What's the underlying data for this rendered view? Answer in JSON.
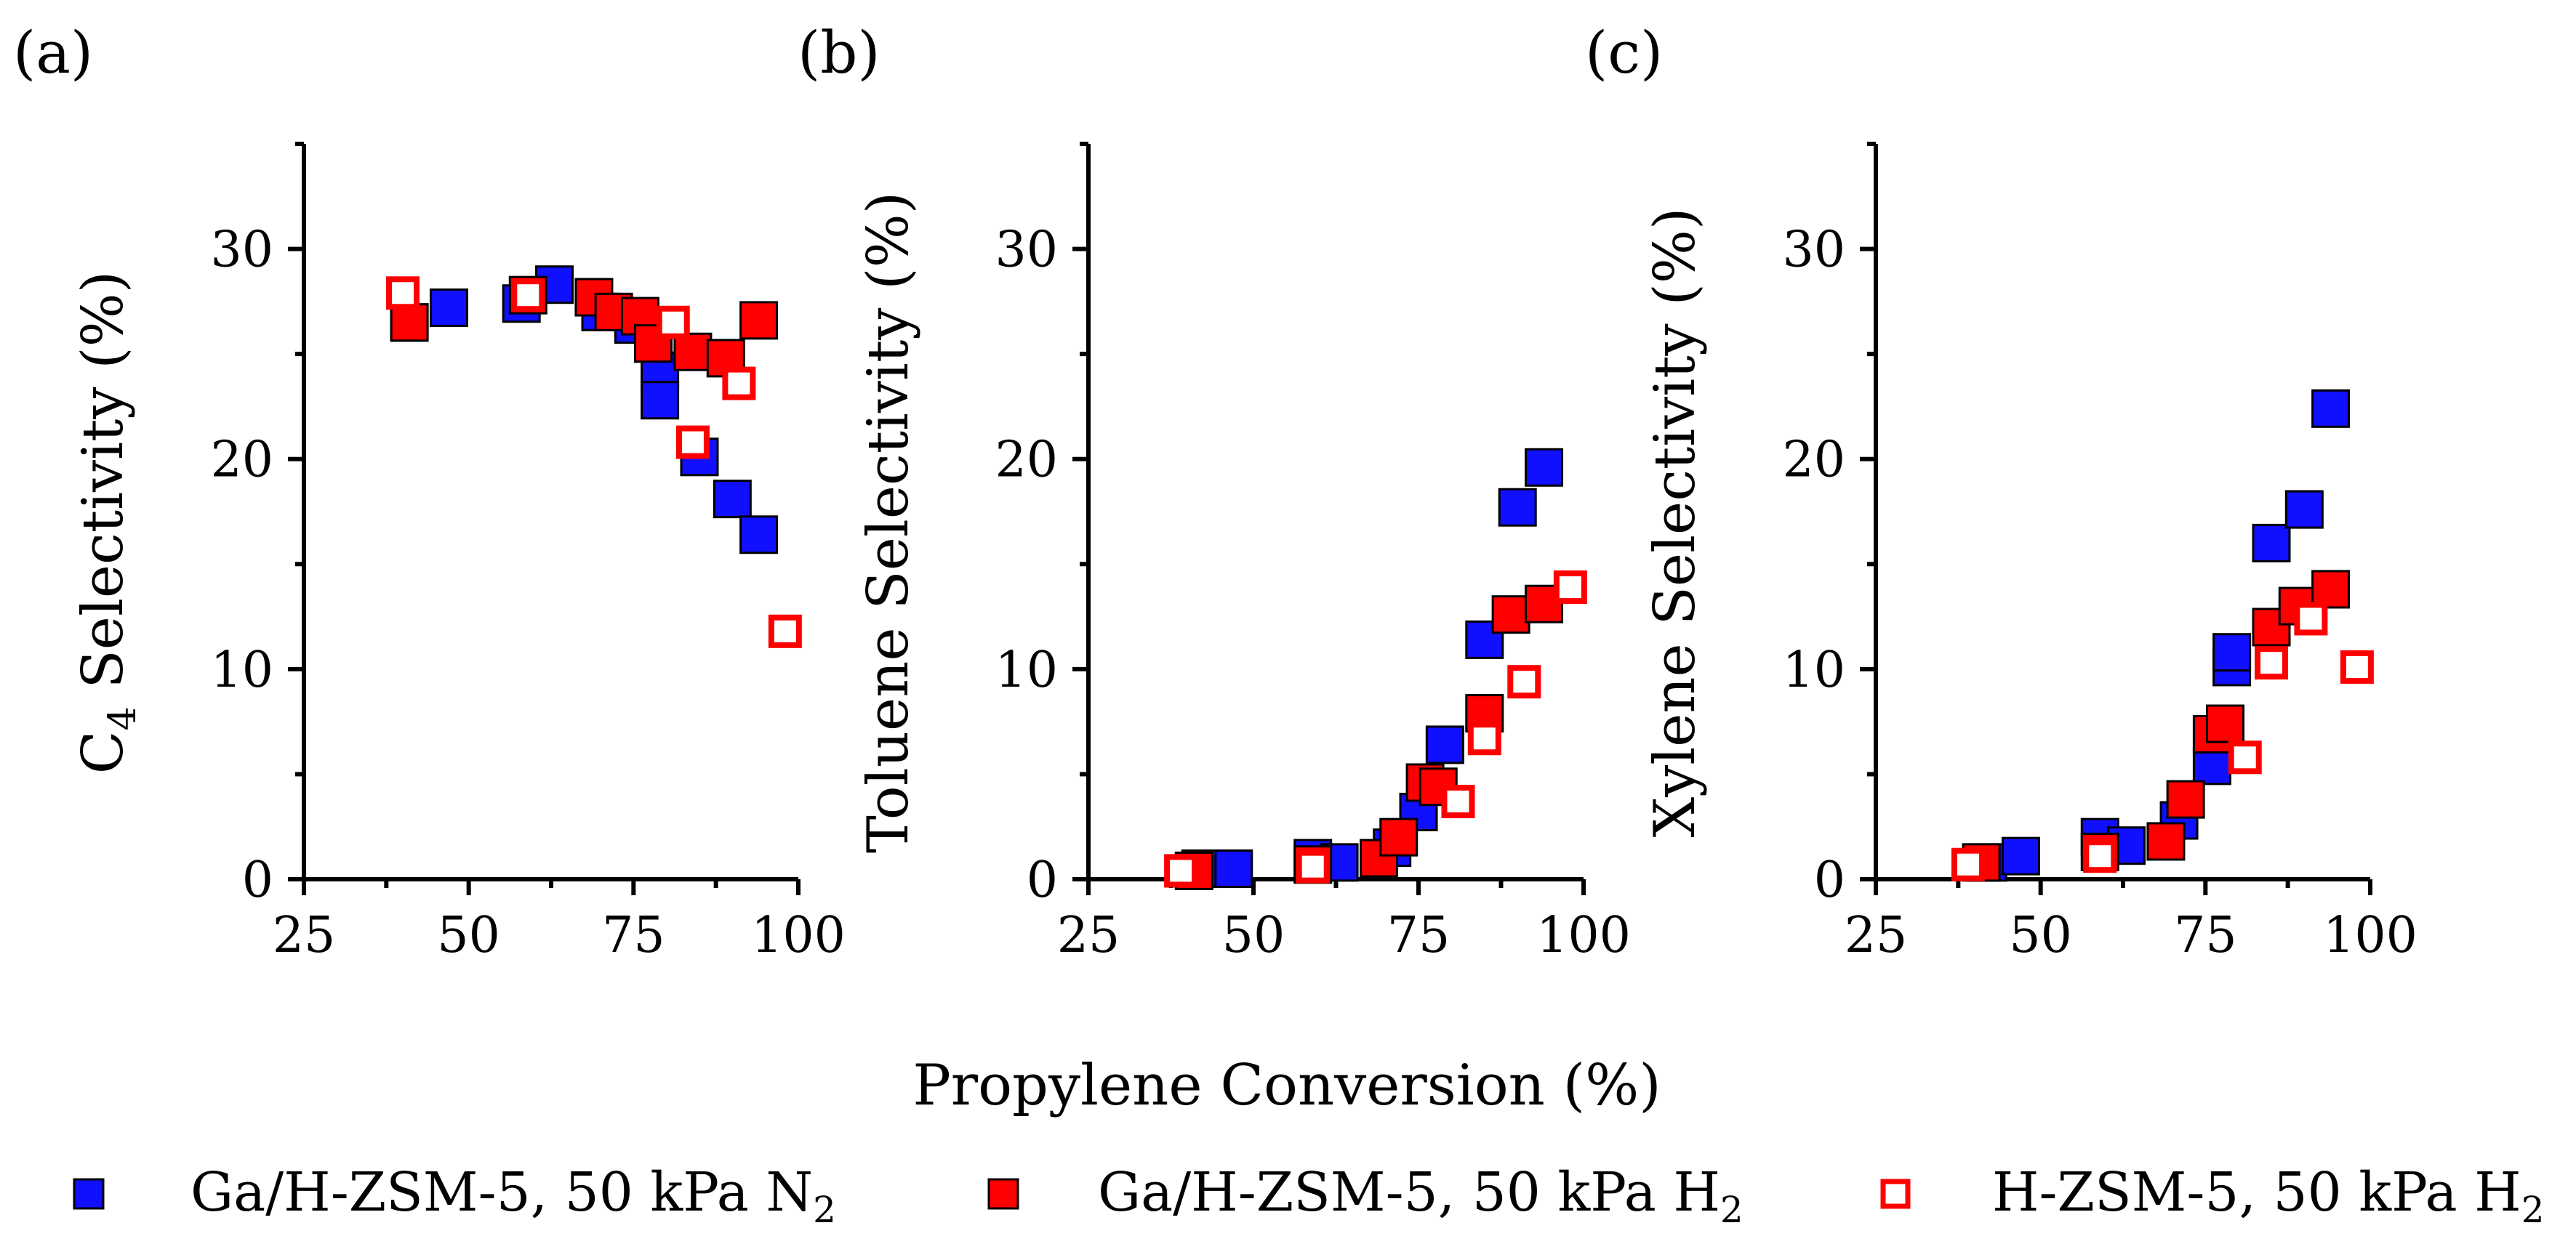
{
  "x_axis_title": "Propylene Conversion (%)",
  "legend": [
    {
      "marker": "blue-filled-square",
      "text_main": "Ga/H-ZSM-5, 50 kPa N",
      "text_sub": "2"
    },
    {
      "marker": "red-filled-square",
      "text_main": "Ga/H-ZSM-5, 50 kPa H",
      "text_sub": "2"
    },
    {
      "marker": "red-open-square",
      "text_main": "H-ZSM-5, 50 kPa H",
      "text_sub": "2"
    }
  ],
  "colors": {
    "blue": "#1010ff",
    "red": "#ff0000",
    "outline": "#000000"
  },
  "chart_data": [
    {
      "type": "scatter",
      "panel_label": "(a)",
      "ylabel_pre": "C",
      "ylabel_sub": "4",
      "ylabel_post": " Selectivity (%)",
      "xlim": [
        25,
        100
      ],
      "ylim": [
        0,
        35
      ],
      "xticks": [
        "25",
        "50",
        "75",
        "100"
      ],
      "yticks": [
        "0",
        "10",
        "20",
        "30"
      ],
      "series": [
        {
          "style": "blue",
          "points": [
            [
              41,
              26.5
            ],
            [
              47,
              27.2
            ],
            [
              58,
              27.4
            ],
            [
              63,
              28.3
            ],
            [
              70,
              27.0
            ],
            [
              75,
              26.4
            ],
            [
              78,
              25.5
            ],
            [
              79,
              24.2
            ],
            [
              79,
              22.8
            ],
            [
              85,
              20.1
            ],
            [
              90,
              18.1
            ],
            [
              94,
              16.4
            ]
          ]
        },
        {
          "style": "red",
          "points": [
            [
              41,
              26.5
            ],
            [
              59,
              27.8
            ],
            [
              69,
              27.7
            ],
            [
              72,
              27.0
            ],
            [
              76,
              26.8
            ],
            [
              78,
              25.5
            ],
            [
              84,
              25.1
            ],
            [
              89,
              24.8
            ],
            [
              94,
              26.6
            ]
          ]
        },
        {
          "style": "open",
          "points": [
            [
              40,
              27.9
            ],
            [
              59,
              27.8
            ],
            [
              81,
              26.5
            ],
            [
              84,
              20.8
            ],
            [
              91,
              23.6
            ],
            [
              98,
              11.8
            ]
          ]
        }
      ]
    },
    {
      "type": "scatter",
      "panel_label": "(b)",
      "ylabel_pre": "Toluene Selectivity (%)",
      "ylabel_sub": "",
      "ylabel_post": "",
      "xlim": [
        25,
        100
      ],
      "ylim": [
        0,
        35
      ],
      "xticks": [
        "25",
        "50",
        "75",
        "100"
      ],
      "yticks": [
        "0",
        "10",
        "20",
        "30"
      ],
      "series": [
        {
          "style": "blue",
          "points": [
            [
              42,
              0.5
            ],
            [
              47,
              0.5
            ],
            [
              59,
              1.0
            ],
            [
              63,
              0.8
            ],
            [
              71,
              1.5
            ],
            [
              75,
              3.2
            ],
            [
              79,
              6.4
            ],
            [
              85,
              11.4
            ],
            [
              90,
              17.7
            ],
            [
              94,
              19.6
            ]
          ]
        },
        {
          "style": "red",
          "points": [
            [
              41,
              0.4
            ],
            [
              59,
              0.7
            ],
            [
              69,
              1.0
            ],
            [
              72,
              2.0
            ],
            [
              76,
              4.6
            ],
            [
              78,
              4.4
            ],
            [
              85,
              7.9
            ],
            [
              89,
              12.6
            ],
            [
              94,
              13.1
            ]
          ]
        },
        {
          "style": "open",
          "points": [
            [
              39,
              0.4
            ],
            [
              59,
              0.6
            ],
            [
              81,
              3.7
            ],
            [
              85,
              6.7
            ],
            [
              91,
              9.4
            ],
            [
              98,
              13.9
            ]
          ]
        }
      ]
    },
    {
      "type": "scatter",
      "panel_label": "(c)",
      "ylabel_pre": "Xylene Selectivity (%)",
      "ylabel_sub": "",
      "ylabel_post": "",
      "xlim": [
        25,
        100
      ],
      "ylim": [
        0,
        35
      ],
      "xticks": [
        "25",
        "50",
        "75",
        "100"
      ],
      "yticks": [
        "0",
        "10",
        "20",
        "30"
      ],
      "series": [
        {
          "style": "blue",
          "points": [
            [
              42,
              0.8
            ],
            [
              47,
              1.1
            ],
            [
              59,
              2.0
            ],
            [
              63,
              1.6
            ],
            [
              71,
              2.8
            ],
            [
              76,
              5.4
            ],
            [
              79,
              10.1
            ],
            [
              79,
              10.8
            ],
            [
              85,
              16.0
            ],
            [
              90,
              17.6
            ],
            [
              94,
              22.4
            ]
          ]
        },
        {
          "style": "red",
          "points": [
            [
              41,
              0.8
            ],
            [
              59,
              1.3
            ],
            [
              69,
              1.8
            ],
            [
              72,
              3.8
            ],
            [
              76,
              6.9
            ],
            [
              78,
              7.4
            ],
            [
              85,
              12.0
            ],
            [
              89,
              13.0
            ],
            [
              94,
              13.8
            ]
          ]
        },
        {
          "style": "open",
          "points": [
            [
              39,
              0.7
            ],
            [
              59,
              1.1
            ],
            [
              81,
              5.8
            ],
            [
              85,
              10.3
            ],
            [
              91,
              12.4
            ],
            [
              98,
              10.1
            ]
          ]
        }
      ]
    }
  ]
}
